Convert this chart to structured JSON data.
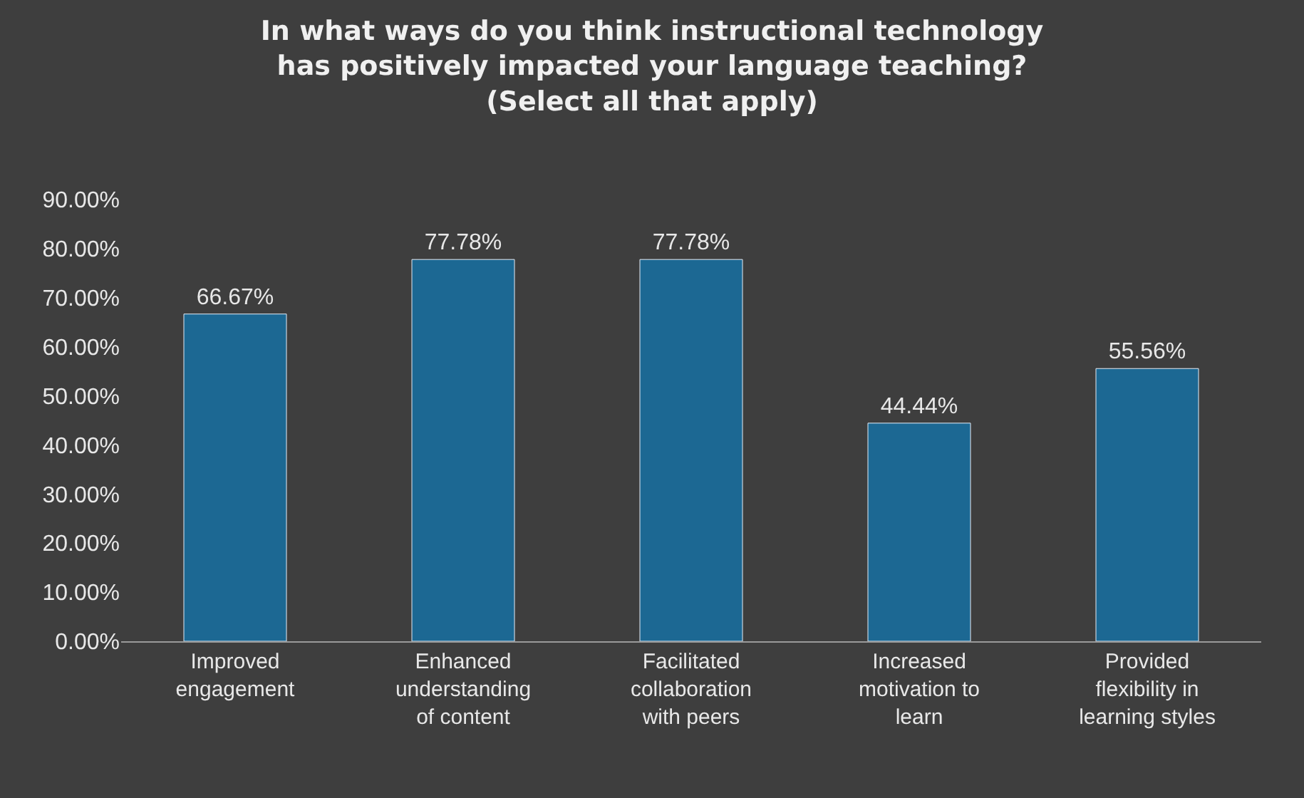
{
  "chart_data": {
    "type": "bar",
    "title": "In what ways do you think instructional technology\nhas positively impacted your language teaching?\n(Select all that apply)",
    "categories": [
      "Improved engagement",
      "Enhanced understanding of content",
      "Facilitated collaboration with peers",
      "Increased motivation to learn",
      "Provided flexibility in learning styles"
    ],
    "values": [
      66.67,
      77.78,
      77.78,
      44.44,
      55.56
    ],
    "value_labels": [
      "66.67%",
      "77.78%",
      "77.78%",
      "44.44%",
      "55.56%"
    ],
    "color": "#1c6893",
    "ylim": [
      0,
      90
    ],
    "yticks": [
      {
        "value": 0,
        "label": "0.00%"
      },
      {
        "value": 10,
        "label": "10.00%"
      },
      {
        "value": 20,
        "label": "20.00%"
      },
      {
        "value": 30,
        "label": "30.00%"
      },
      {
        "value": 40,
        "label": "40.00%"
      },
      {
        "value": 50,
        "label": "50.00%"
      },
      {
        "value": 60,
        "label": "60.00%"
      },
      {
        "value": 70,
        "label": "70.00%"
      },
      {
        "value": 80,
        "label": "80.00%"
      },
      {
        "value": 90,
        "label": "90.00%"
      }
    ],
    "grid": false,
    "legend": false
  }
}
